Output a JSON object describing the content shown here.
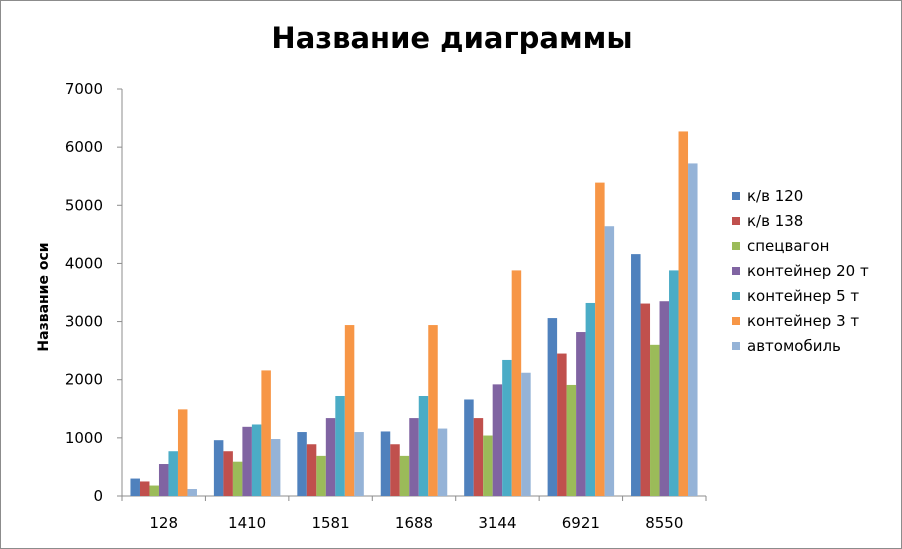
{
  "chart_data": {
    "type": "bar",
    "title": "Название диаграммы",
    "ylabel": "Название оси",
    "xlabel": "",
    "categories": [
      "128",
      "1410",
      "1581",
      "1688",
      "3144",
      "6921",
      "8550"
    ],
    "ylim": [
      0,
      7000
    ],
    "yticks": [
      0,
      1000,
      2000,
      3000,
      4000,
      5000,
      6000,
      7000
    ],
    "grid": false,
    "legend_position": "right",
    "series": [
      {
        "name": "к/в 120",
        "color": "#4f81bd",
        "values": [
          300,
          960,
          1100,
          1110,
          1660,
          3060,
          4160
        ]
      },
      {
        "name": "к/в 138",
        "color": "#c0504d",
        "values": [
          250,
          770,
          890,
          890,
          1340,
          2450,
          3310
        ]
      },
      {
        "name": "спецвагон",
        "color": "#9bbb59",
        "values": [
          180,
          590,
          690,
          690,
          1040,
          1910,
          2600
        ]
      },
      {
        "name": "контейнер 20 т",
        "color": "#8064a2",
        "values": [
          550,
          1190,
          1340,
          1340,
          1920,
          2820,
          3350
        ]
      },
      {
        "name": "контейнер 5 т",
        "color": "#4bacc6",
        "values": [
          770,
          1230,
          1720,
          1720,
          2340,
          3320,
          3880
        ]
      },
      {
        "name": "контейнер 3 т",
        "color": "#f79646",
        "values": [
          1490,
          2160,
          2940,
          2940,
          3880,
          5390,
          6270
        ]
      },
      {
        "name": "автомобиль",
        "color": "#95b3d7",
        "values": [
          120,
          980,
          1100,
          1160,
          2120,
          4640,
          5720
        ]
      }
    ]
  }
}
